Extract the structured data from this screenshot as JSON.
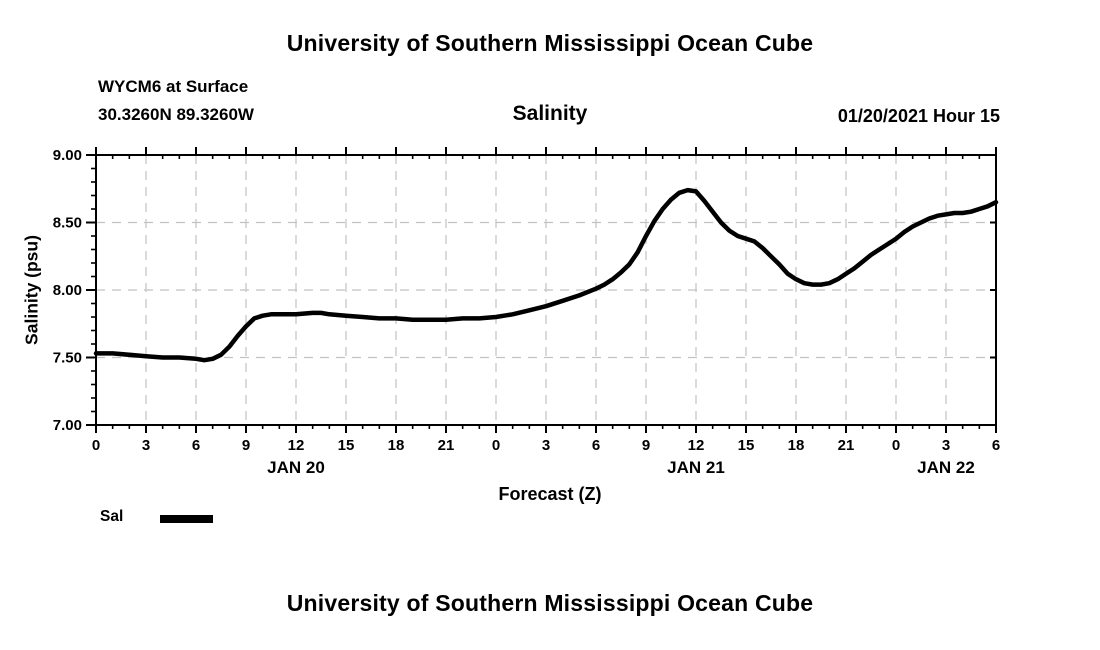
{
  "header": {
    "title": "University of Southern Mississippi Ocean Cube"
  },
  "meta": {
    "station": "WYCM6 at Surface",
    "coordinates": "30.3260N 89.3260W",
    "plot_title": "Salinity",
    "datetime": "01/20/2021 Hour 15"
  },
  "legend": {
    "label": "Sal",
    "swatch_color": "#000000"
  },
  "footer": {
    "title": "University of Southern Mississippi Ocean Cube"
  },
  "colors": {
    "background": "#ffffff",
    "text": "#000000",
    "axis": "#000000",
    "grid": "#c2c2c2",
    "line": "#000000"
  },
  "chart_data": {
    "type": "line",
    "title": "Salinity",
    "xlabel": "Forecast (Z)",
    "ylabel": "Salinity (psu)",
    "xlim": [
      0,
      54
    ],
    "ylim": [
      7.0,
      9.0
    ],
    "grid": true,
    "legend_position": "bottom-left",
    "x_major_ticks": [
      0,
      3,
      6,
      9,
      12,
      15,
      18,
      21,
      24,
      27,
      30,
      33,
      36,
      39,
      42,
      45,
      48,
      51,
      54
    ],
    "x_major_labels": [
      "0",
      "3",
      "6",
      "9",
      "12",
      "15",
      "18",
      "21",
      "0",
      "3",
      "6",
      "9",
      "12",
      "15",
      "18",
      "21",
      "0",
      "3",
      "6"
    ],
    "x_minor_step": 1,
    "y_major_ticks": [
      7.0,
      7.5,
      8.0,
      8.5,
      9.0
    ],
    "y_major_labels": [
      "7.00",
      "7.50",
      "8.00",
      "8.50",
      "9.00"
    ],
    "y_minor_step": 0.1,
    "day_labels": [
      {
        "label": "JAN 20",
        "hour": 12
      },
      {
        "label": "JAN 21",
        "hour": 36
      },
      {
        "label": "JAN 22",
        "hour": 51
      }
    ],
    "series": [
      {
        "name": "Sal",
        "color": "#000000",
        "points": [
          [
            0,
            7.53
          ],
          [
            1,
            7.53
          ],
          [
            2,
            7.52
          ],
          [
            3,
            7.51
          ],
          [
            4,
            7.5
          ],
          [
            5,
            7.5
          ],
          [
            6,
            7.49
          ],
          [
            6.5,
            7.48
          ],
          [
            7,
            7.49
          ],
          [
            7.5,
            7.52
          ],
          [
            8,
            7.58
          ],
          [
            8.5,
            7.66
          ],
          [
            9,
            7.73
          ],
          [
            9.5,
            7.79
          ],
          [
            10,
            7.81
          ],
          [
            10.5,
            7.82
          ],
          [
            11,
            7.82
          ],
          [
            12,
            7.82
          ],
          [
            13,
            7.83
          ],
          [
            13.5,
            7.83
          ],
          [
            14,
            7.82
          ],
          [
            15,
            7.81
          ],
          [
            16,
            7.8
          ],
          [
            17,
            7.79
          ],
          [
            18,
            7.79
          ],
          [
            19,
            7.78
          ],
          [
            20,
            7.78
          ],
          [
            21,
            7.78
          ],
          [
            22,
            7.79
          ],
          [
            23,
            7.79
          ],
          [
            24,
            7.8
          ],
          [
            25,
            7.82
          ],
          [
            26,
            7.85
          ],
          [
            27,
            7.88
          ],
          [
            28,
            7.92
          ],
          [
            29,
            7.96
          ],
          [
            30,
            8.01
          ],
          [
            30.5,
            8.04
          ],
          [
            31,
            8.08
          ],
          [
            31.5,
            8.13
          ],
          [
            32,
            8.19
          ],
          [
            32.5,
            8.28
          ],
          [
            33,
            8.4
          ],
          [
            33.5,
            8.51
          ],
          [
            34,
            8.6
          ],
          [
            34.5,
            8.67
          ],
          [
            35,
            8.72
          ],
          [
            35.5,
            8.74
          ],
          [
            36,
            8.73
          ],
          [
            36.5,
            8.66
          ],
          [
            37,
            8.58
          ],
          [
            37.5,
            8.5
          ],
          [
            38,
            8.44
          ],
          [
            38.5,
            8.4
          ],
          [
            39,
            8.38
          ],
          [
            39.5,
            8.36
          ],
          [
            40,
            8.31
          ],
          [
            40.5,
            8.25
          ],
          [
            41,
            8.19
          ],
          [
            41.5,
            8.12
          ],
          [
            42,
            8.08
          ],
          [
            42.5,
            8.05
          ],
          [
            43,
            8.04
          ],
          [
            43.5,
            8.04
          ],
          [
            44,
            8.05
          ],
          [
            44.5,
            8.08
          ],
          [
            45,
            8.12
          ],
          [
            45.5,
            8.16
          ],
          [
            46,
            8.21
          ],
          [
            46.5,
            8.26
          ],
          [
            47,
            8.3
          ],
          [
            47.5,
            8.34
          ],
          [
            48,
            8.38
          ],
          [
            48.5,
            8.43
          ],
          [
            49,
            8.47
          ],
          [
            49.5,
            8.5
          ],
          [
            50,
            8.53
          ],
          [
            50.5,
            8.55
          ],
          [
            51,
            8.56
          ],
          [
            51.5,
            8.57
          ],
          [
            52,
            8.57
          ],
          [
            52.5,
            8.58
          ],
          [
            53,
            8.6
          ],
          [
            53.5,
            8.62
          ],
          [
            54,
            8.65
          ]
        ]
      }
    ]
  }
}
